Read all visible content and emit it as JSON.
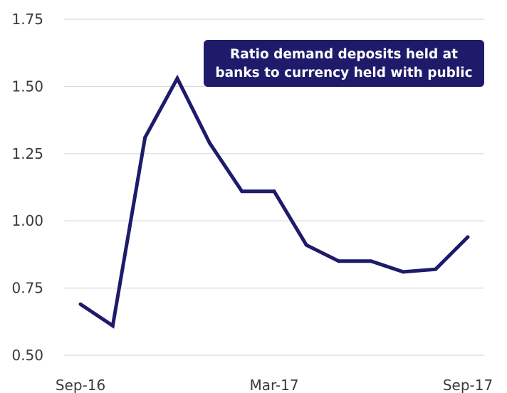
{
  "chart_data": {
    "type": "line",
    "title": "",
    "xlabel": "",
    "ylabel": "",
    "x": [
      "Sep-16",
      "Oct-16",
      "Nov-16",
      "Dec-16",
      "Jan-17",
      "Feb-17",
      "Mar-17",
      "Apr-17",
      "May-17",
      "Jun-17",
      "Jul-17",
      "Aug-17",
      "Sep-17"
    ],
    "x_tick_labels": [
      "Sep-16",
      "Mar-17",
      "Sep-17"
    ],
    "series": [
      {
        "name": "Ratio demand deposits held at banks to currency held with public",
        "values": [
          0.69,
          0.61,
          1.31,
          1.53,
          1.29,
          1.11,
          1.11,
          0.91,
          0.85,
          0.85,
          0.81,
          0.82,
          0.94
        ],
        "color": "#1e1b6b"
      }
    ],
    "ylim": [
      0.5,
      1.75
    ],
    "y_ticks": [
      "0.50",
      "0.75",
      "1.00",
      "1.25",
      "1.50",
      "1.75"
    ],
    "grid": true,
    "annotation": {
      "lines": [
        "Ratio demand deposits held at",
        "banks to currency held with public"
      ],
      "background": "#1e1b6b",
      "text_color": "#ffffff"
    }
  }
}
